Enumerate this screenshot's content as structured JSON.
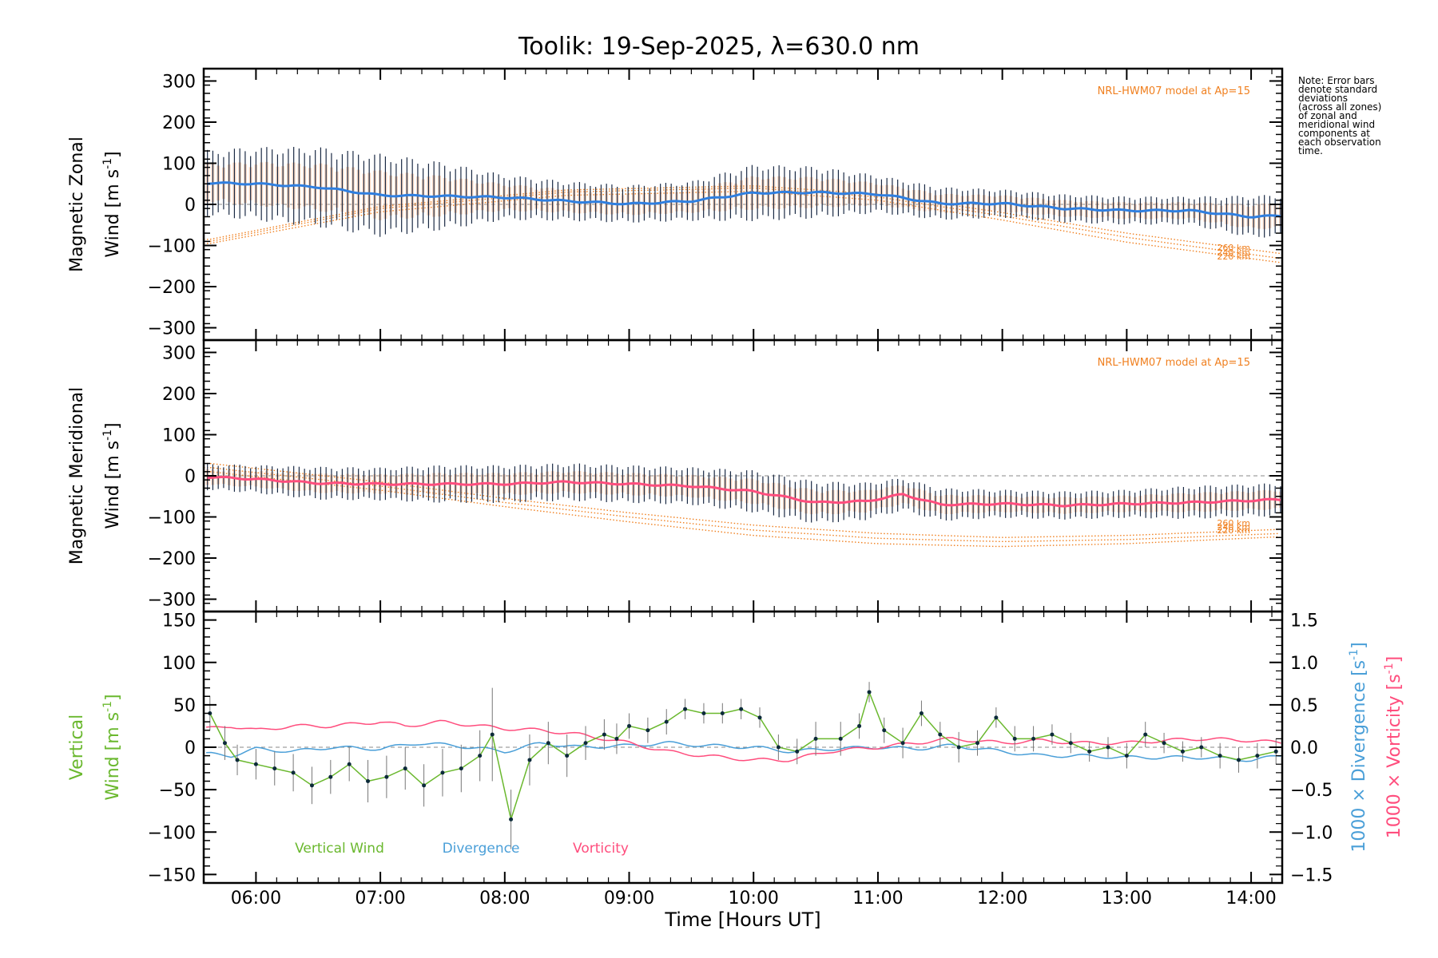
{
  "title": "Toolik: 19-Sep-2025, λ=630.0 nm",
  "note_lines": [
    "Note: Error bars",
    "denote standard",
    "deviations",
    "(across all zones)",
    "of zonal and",
    "meridional wind",
    "components at",
    "each observation",
    "time."
  ],
  "colors": {
    "zonal": "#2f7fe0",
    "meridional": "#ff4d7d",
    "model": "#f08020",
    "vertical": "#6ab82e",
    "divergence": "#4a9fd8",
    "vorticity": "#ff4d7d",
    "errbar": "#1a2a44"
  },
  "chart_data": [
    {
      "type": "line",
      "panel": "zonal",
      "ylabel_line1": "Magnetic Zonal",
      "ylabel_line2_text": "Wind [m s",
      "ylabel_exp": "-1",
      "ylabel_close": "]",
      "ylim": [
        -330,
        330
      ],
      "yticks": [
        -300,
        -200,
        -100,
        0,
        100,
        200,
        300
      ],
      "model_label": "NRL-HWM07 model at Ap=15",
      "altitude_labels": [
        "260 km",
        "240 km",
        "220 km"
      ],
      "series": [
        {
          "name": "Zonal wind",
          "x": [
            5.63,
            6.0,
            6.5,
            7.0,
            7.5,
            8.0,
            8.5,
            9.0,
            9.5,
            10.0,
            10.5,
            11.0,
            11.5,
            12.0,
            12.5,
            13.0,
            13.5,
            14.0,
            14.2
          ],
          "values": [
            52,
            50,
            42,
            22,
            20,
            17,
            8,
            1,
            8,
            28,
            29,
            25,
            2,
            2,
            -10,
            -15,
            -15,
            -30,
            -28
          ],
          "error": [
            70,
            78,
            85,
            88,
            72,
            48,
            42,
            40,
            42,
            60,
            55,
            40,
            35,
            30,
            30,
            30,
            30,
            45,
            45
          ]
        },
        {
          "name": "Model 260 km",
          "x": [
            5.63,
            7.0,
            8.5,
            10.0,
            11.0,
            12.0,
            13.0,
            14.25
          ],
          "values": [
            -85,
            -5,
            35,
            45,
            25,
            -20,
            -70,
            -120
          ]
        },
        {
          "name": "Model 240 km",
          "x": [
            5.63,
            7.0,
            8.5,
            10.0,
            11.0,
            12.0,
            13.0,
            14.25
          ],
          "values": [
            -90,
            -10,
            30,
            40,
            18,
            -28,
            -80,
            -132
          ]
        },
        {
          "name": "Model 220 km",
          "x": [
            5.63,
            7.0,
            8.5,
            10.0,
            11.0,
            12.0,
            13.0,
            14.25
          ],
          "values": [
            -95,
            -18,
            22,
            32,
            10,
            -38,
            -92,
            -142
          ]
        }
      ]
    },
    {
      "type": "line",
      "panel": "meridional",
      "ylabel_line1": "Magnetic Meridional",
      "ylabel_line2_text": "Wind [m s",
      "ylabel_exp": "-1",
      "ylabel_close": "]",
      "ylim": [
        -330,
        330
      ],
      "yticks": [
        -300,
        -200,
        -100,
        0,
        100,
        200,
        300
      ],
      "model_label": "NRL-HWM07 model at Ap=15",
      "altitude_labels": [
        "260 km",
        "240 km",
        "220 km"
      ],
      "series": [
        {
          "name": "Meridional wind",
          "x": [
            5.63,
            6.0,
            6.5,
            7.0,
            7.5,
            8.0,
            8.5,
            9.0,
            9.5,
            10.0,
            10.5,
            10.9,
            11.2,
            11.5,
            12.0,
            12.5,
            13.0,
            13.5,
            14.0,
            14.2
          ],
          "values": [
            -3,
            -8,
            -18,
            -20,
            -20,
            -20,
            -15,
            -20,
            -25,
            -38,
            -65,
            -62,
            -45,
            -70,
            -68,
            -72,
            -68,
            -65,
            -60,
            -58
          ],
          "error": [
            28,
            30,
            35,
            35,
            40,
            40,
            40,
            40,
            40,
            45,
            45,
            40,
            35,
            35,
            30,
            30,
            30,
            35,
            35,
            35
          ]
        },
        {
          "name": "Model 260 km",
          "x": [
            5.63,
            7.0,
            8.0,
            9.0,
            10.0,
            11.0,
            12.0,
            13.0,
            14.25
          ],
          "values": [
            30,
            -15,
            -55,
            -90,
            -120,
            -140,
            -150,
            -145,
            -130
          ]
        },
        {
          "name": "Model 240 km",
          "x": [
            5.63,
            7.0,
            8.0,
            9.0,
            10.0,
            11.0,
            12.0,
            13.0,
            14.25
          ],
          "values": [
            20,
            -25,
            -65,
            -100,
            -132,
            -152,
            -160,
            -155,
            -140
          ]
        },
        {
          "name": "Model 220 km",
          "x": [
            5.63,
            7.0,
            8.0,
            9.0,
            10.0,
            11.0,
            12.0,
            13.0,
            14.25
          ],
          "values": [
            10,
            -35,
            -75,
            -112,
            -145,
            -165,
            -172,
            -165,
            -148
          ]
        }
      ]
    },
    {
      "type": "line",
      "panel": "vertical",
      "title_left_green1": "Vertical",
      "title_left_green2_text": "Wind [m s",
      "title_left_exp": "-1",
      "title_left_close": "]",
      "ylim": [
        -160,
        160
      ],
      "yticks": [
        -150,
        -100,
        -50,
        0,
        50,
        100,
        150
      ],
      "y2lim": [
        -1.6,
        1.6
      ],
      "y2ticks": [
        -1.5,
        -1.0,
        -0.5,
        0.0,
        0.5,
        1.0,
        1.5
      ],
      "y2label_div_text": "1000 × Divergence [s",
      "y2label_vort_text": "1000 × Vorticity [s",
      "y2label_exp": "-1",
      "y2label_close": "]",
      "legend": [
        "Vertical Wind",
        "Divergence",
        "Vorticity"
      ],
      "series": [
        {
          "name": "Vertical Wind",
          "x": [
            5.63,
            5.75,
            5.85,
            6.0,
            6.15,
            6.3,
            6.45,
            6.6,
            6.75,
            6.9,
            7.05,
            7.2,
            7.35,
            7.5,
            7.65,
            7.8,
            7.9,
            8.05,
            8.2,
            8.35,
            8.5,
            8.65,
            8.8,
            8.9,
            9.0,
            9.15,
            9.3,
            9.45,
            9.6,
            9.75,
            9.9,
            10.05,
            10.2,
            10.35,
            10.5,
            10.7,
            10.85,
            10.93,
            11.05,
            11.2,
            11.35,
            11.5,
            11.65,
            11.8,
            11.95,
            12.1,
            12.25,
            12.4,
            12.55,
            12.7,
            12.85,
            13.0,
            13.15,
            13.3,
            13.45,
            13.6,
            13.75,
            13.9,
            14.05,
            14.2
          ],
          "values": [
            40,
            5,
            -15,
            -20,
            -25,
            -30,
            -45,
            -35,
            -20,
            -40,
            -35,
            -25,
            -45,
            -30,
            -25,
            -10,
            15,
            -85,
            -15,
            5,
            -10,
            5,
            15,
            10,
            25,
            20,
            30,
            45,
            40,
            40,
            45,
            35,
            0,
            -5,
            10,
            10,
            25,
            65,
            20,
            5,
            40,
            15,
            0,
            5,
            35,
            10,
            10,
            15,
            5,
            -5,
            0,
            -10,
            15,
            5,
            -5,
            0,
            -10,
            -15,
            -10,
            -5
          ],
          "error": [
            20,
            20,
            18,
            18,
            20,
            22,
            22,
            20,
            20,
            25,
            25,
            25,
            25,
            28,
            28,
            30,
            55,
            35,
            30,
            25,
            25,
            20,
            18,
            18,
            15,
            15,
            15,
            12,
            12,
            12,
            12,
            12,
            15,
            15,
            20,
            20,
            15,
            12,
            15,
            18,
            15,
            15,
            18,
            15,
            12,
            15,
            15,
            12,
            12,
            12,
            12,
            15,
            15,
            12,
            12,
            12,
            15,
            15,
            15,
            15
          ]
        },
        {
          "name": "Divergence",
          "axis": "right",
          "x": [
            5.63,
            5.8,
            6.0,
            6.3,
            6.6,
            7.0,
            7.3,
            7.6,
            8.0,
            8.3,
            8.6,
            9.0,
            9.3,
            9.6,
            10.0,
            10.3,
            10.6,
            11.0,
            11.3,
            11.6,
            12.0,
            12.3,
            12.6,
            13.0,
            13.3,
            13.6,
            14.0,
            14.25
          ],
          "values": [
            -0.08,
            -0.1,
            -0.02,
            -0.05,
            0.0,
            -0.02,
            0.05,
            0.02,
            -0.05,
            0.05,
            0.0,
            0.02,
            0.05,
            0.02,
            0.0,
            -0.05,
            -0.02,
            0.0,
            -0.02,
            0.02,
            -0.05,
            -0.1,
            -0.1,
            -0.12,
            -0.12,
            -0.12,
            -0.15,
            -0.1
          ]
        },
        {
          "name": "Vorticity",
          "axis": "right",
          "x": [
            5.63,
            5.8,
            6.0,
            6.3,
            6.6,
            7.0,
            7.2,
            7.5,
            7.8,
            8.0,
            8.3,
            8.6,
            9.0,
            9.3,
            9.6,
            10.0,
            10.3,
            10.6,
            11.0,
            11.3,
            11.6,
            12.0,
            12.3,
            12.6,
            13.0,
            13.3,
            13.6,
            14.0,
            14.25
          ],
          "values": [
            0.22,
            0.25,
            0.2,
            0.25,
            0.25,
            0.3,
            0.25,
            0.3,
            0.25,
            0.22,
            0.2,
            0.15,
            0.05,
            -0.05,
            -0.1,
            -0.15,
            -0.15,
            -0.05,
            0.0,
            0.05,
            0.1,
            0.05,
            0.08,
            0.05,
            0.05,
            0.08,
            0.1,
            0.08,
            0.05
          ]
        }
      ]
    }
  ],
  "x_axis": {
    "label": "Time [Hours UT]",
    "xlim": [
      5.58,
      14.25
    ],
    "ticks": [
      6,
      7,
      8,
      9,
      10,
      11,
      12,
      13,
      14
    ],
    "tick_labels": [
      "06:00",
      "07:00",
      "08:00",
      "09:00",
      "10:00",
      "11:00",
      "12:00",
      "13:00",
      "14:00"
    ]
  }
}
